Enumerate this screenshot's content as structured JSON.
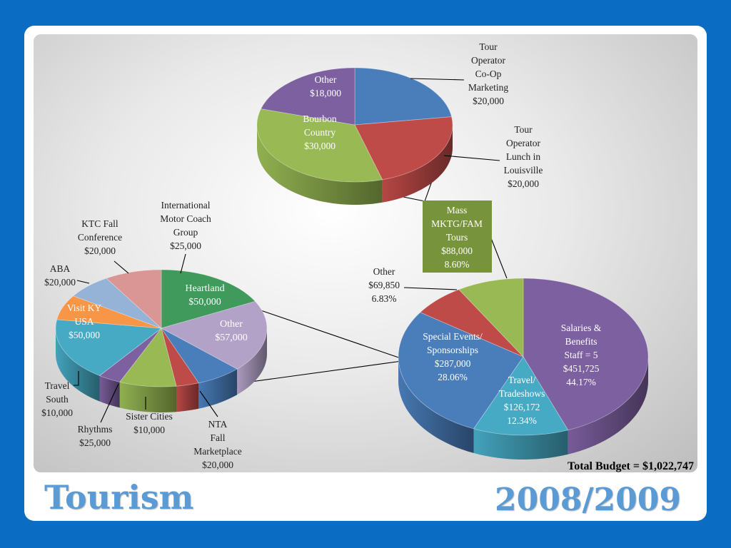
{
  "slide": {
    "title": "Tourism",
    "year": "2008/2009",
    "total_budget": "Total Budget = $1,022,747"
  },
  "colors": {
    "background": "#0a6cc2",
    "title": "#5b9bd5",
    "blue": "#4a7ebb",
    "red": "#be4b48",
    "green": "#98b954",
    "purple": "#7d60a0",
    "teal": "#46aac5",
    "orange": "#f79646",
    "lightblue": "#95b3d7",
    "pink": "#d99694",
    "lavender": "#b3a2c7",
    "kgreen": "#3f9a5b",
    "mgmt_box": "#77933c"
  },
  "chart_data": [
    {
      "type": "pie",
      "name": "main",
      "slices": [
        {
          "label": "Salaries & Benefits Staff = 5",
          "value": 451725,
          "value_text": "$451,725",
          "pct_text": "44.17%",
          "color": "purple",
          "label_pos": "inside"
        },
        {
          "label": "Travel/ Tradeshows",
          "value": 126172,
          "value_text": "$126,172",
          "pct_text": "12.34%",
          "color": "teal",
          "label_pos": "inside"
        },
        {
          "label": "Special Events/ Sponsorships",
          "value": 287000,
          "value_text": "$287,000",
          "pct_text": "28.06%",
          "color": "blue",
          "label_pos": "inside"
        },
        {
          "label": "Other",
          "value": 69850,
          "value_text": "$69,850",
          "pct_text": "6.83%",
          "color": "red",
          "label_pos": "outside"
        },
        {
          "label": "Mass MKTG/FAM Tours",
          "value": 88000,
          "value_text": "$88,000",
          "pct_text": "8.60%",
          "color": "green",
          "label_pos": "box"
        }
      ]
    },
    {
      "type": "pie",
      "name": "mass-mktg-breakdown",
      "slices": [
        {
          "label": "Tour Operator Co-Op Marketing",
          "value": 20000,
          "value_text": "$20,000",
          "color": "blue",
          "label_pos": "outside"
        },
        {
          "label": "Tour Operator Lunch in Louisville",
          "value": 20000,
          "value_text": "$20,000",
          "color": "red",
          "label_pos": "outside"
        },
        {
          "label": "Bourbon Country",
          "value": 30000,
          "value_text": "$30,000",
          "color": "green",
          "label_pos": "inside"
        },
        {
          "label": "Other",
          "value": 18000,
          "value_text": "$18,000",
          "color": "purple",
          "label_pos": "inside"
        }
      ]
    },
    {
      "type": "pie",
      "name": "special-events-breakdown",
      "slices": [
        {
          "label": "Heartland",
          "value": 50000,
          "value_text": "$50,000",
          "color": "kgreen",
          "label_pos": "inside"
        },
        {
          "label": "Other",
          "value": 57000,
          "value_text": "$57,000",
          "color": "lavender",
          "label_pos": "inside"
        },
        {
          "label": "NTA Fall Marketplace",
          "value": 20000,
          "value_text": "$20,000",
          "color": "blue",
          "label_pos": "outside"
        },
        {
          "label": "Sister Cities",
          "value": 10000,
          "value_text": "$10,000",
          "color": "red",
          "label_pos": "outside"
        },
        {
          "label": "Rhythms",
          "value": 25000,
          "value_text": "$25,000",
          "color": "green",
          "label_pos": "outside"
        },
        {
          "label": "Travel South",
          "value": 10000,
          "value_text": "$10,000",
          "color": "purple",
          "label_pos": "outside"
        },
        {
          "label": "Visit KY USA",
          "value": 50000,
          "value_text": "$50,000",
          "color": "teal",
          "label_pos": "inside"
        },
        {
          "label": "ABA",
          "value": 20000,
          "value_text": "$20,000",
          "color": "orange",
          "label_pos": "outside"
        },
        {
          "label": "KTC Fall Conference",
          "value": 20000,
          "value_text": "$20,000",
          "color": "lightblue",
          "label_pos": "outside"
        },
        {
          "label": "International Motor Coach Group",
          "value": 25000,
          "value_text": "$25,000",
          "color": "pink",
          "label_pos": "outside"
        }
      ]
    }
  ]
}
